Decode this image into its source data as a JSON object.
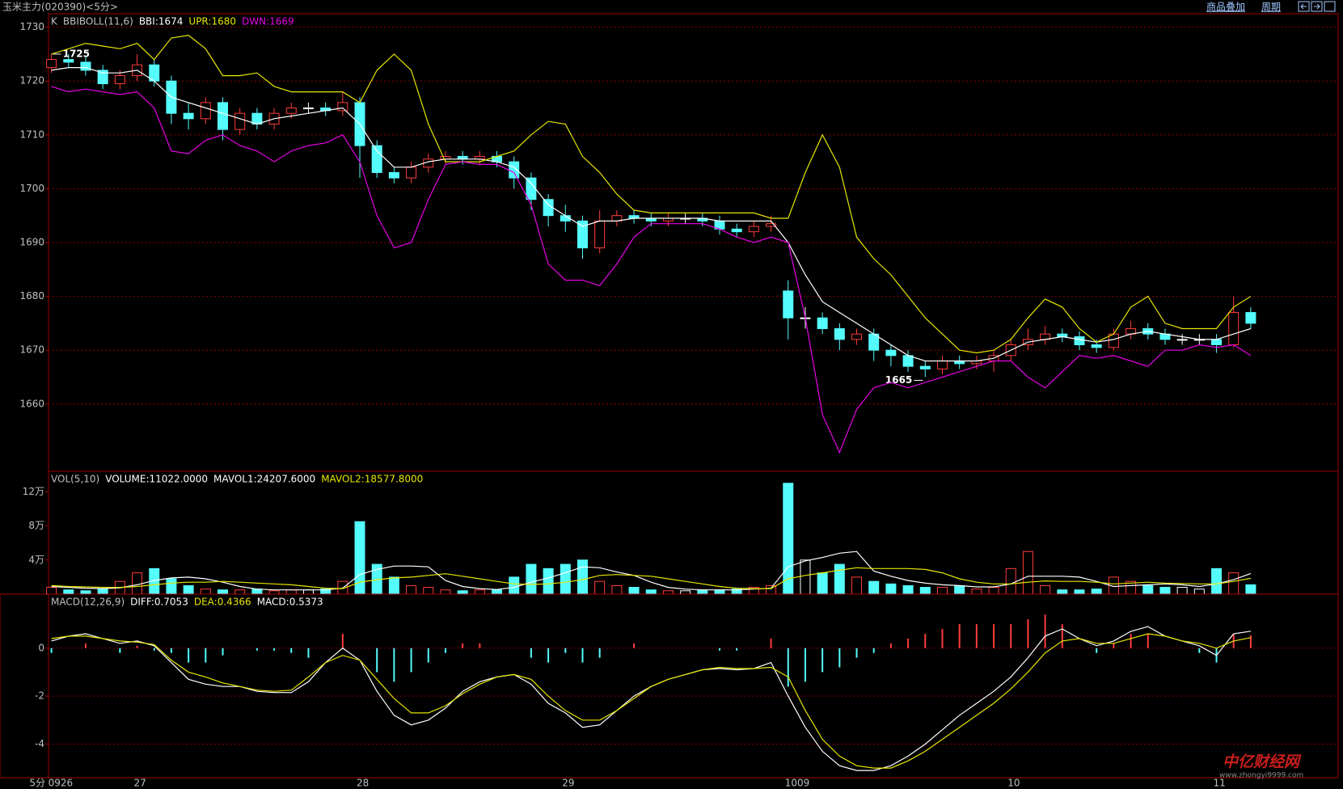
{
  "top_bar": {
    "title": "玉米主力(020390)<5分>",
    "links": [
      "商品叠加",
      "周期"
    ]
  },
  "watermark": {
    "title": "中亿财经网",
    "url": "www.zhongyi9999.com"
  },
  "chart_data": [
    {
      "type": "candlestick",
      "title": "K",
      "indicator": "BBIBOLL(11,6)",
      "up_color": "#ff3c3c",
      "down_color": "#54fcfc",
      "flat_color": "#ffffff",
      "open": [
        1722.5,
        1724,
        1723.5,
        1722,
        1719.5,
        1721,
        1723,
        1720,
        1714,
        1713,
        1716,
        1711,
        1714,
        1712,
        1714,
        1715,
        1715,
        1714.5,
        1716,
        1708,
        1703,
        1702,
        1704,
        1705.5,
        1706,
        1705.5,
        1706,
        1705,
        1702,
        1698,
        1695,
        1694,
        1689,
        1694,
        1695,
        1694.5,
        1694,
        1694.5,
        1694.5,
        1694,
        1692.5,
        1692,
        1693,
        1681,
        1676,
        1676,
        1674,
        1672,
        1673,
        1670,
        1669,
        1667,
        1666.5,
        1668,
        1667.5,
        1668,
        1669,
        1671,
        1672,
        1673,
        1672.5,
        1671,
        1670.5,
        1673,
        1674,
        1673,
        1672,
        1672,
        1672,
        1671,
        1677
      ],
      "high": [
        1725,
        1725,
        1724.5,
        1723,
        1722,
        1725,
        1724,
        1721,
        1716,
        1717,
        1717,
        1715,
        1715,
        1715,
        1716,
        1716,
        1716,
        1718,
        1717,
        1709,
        1704,
        1705,
        1706.5,
        1707,
        1707,
        1707,
        1707,
        1706,
        1703,
        1699,
        1697,
        1695,
        1696,
        1696,
        1696,
        1695.5,
        1695.5,
        1695.5,
        1695.5,
        1695,
        1693.5,
        1694,
        1695,
        1683,
        1678,
        1677,
        1675,
        1674,
        1674,
        1671,
        1670,
        1668,
        1669,
        1669,
        1669,
        1670,
        1672,
        1674,
        1674.5,
        1674,
        1673.5,
        1672,
        1674,
        1675.5,
        1675,
        1674,
        1673,
        1673,
        1673,
        1680,
        1678
      ],
      "low": [
        1721.5,
        1722.5,
        1721,
        1718.5,
        1718.5,
        1720,
        1719,
        1712,
        1711,
        1712,
        1709,
        1710,
        1711,
        1711,
        1713,
        1714,
        1713.5,
        1713.5,
        1702,
        1702,
        1701,
        1701,
        1703,
        1704.5,
        1704.5,
        1704.5,
        1704,
        1700,
        1696,
        1693,
        1692,
        1687,
        1688,
        1693,
        1693.5,
        1693,
        1693,
        1693.5,
        1693,
        1691.5,
        1691,
        1691,
        1692,
        1672,
        1674,
        1673,
        1670,
        1671,
        1668,
        1667,
        1666,
        1665,
        1665.5,
        1666.5,
        1666.5,
        1666,
        1668,
        1670,
        1671,
        1671.5,
        1670,
        1669.5,
        1670,
        1672,
        1672,
        1671,
        1671,
        1671,
        1669.5,
        1670.5,
        1674
      ],
      "close": [
        1724,
        1723.5,
        1722,
        1719.5,
        1721,
        1723,
        1720,
        1714,
        1713,
        1716,
        1711,
        1714,
        1712,
        1714,
        1715,
        1715,
        1714.5,
        1716,
        1708,
        1703,
        1702,
        1704,
        1705.5,
        1706,
        1705.5,
        1706,
        1705,
        1702,
        1698,
        1695,
        1694,
        1689,
        1694,
        1695,
        1694.5,
        1694,
        1694.5,
        1694.5,
        1694,
        1692.5,
        1692,
        1693,
        1693.5,
        1676,
        1676,
        1674,
        1672,
        1673,
        1670,
        1669,
        1667,
        1666.5,
        1668,
        1667.5,
        1668,
        1669,
        1671,
        1672,
        1673,
        1672.5,
        1671,
        1670.5,
        1673,
        1674,
        1673,
        1672,
        1672,
        1672,
        1671,
        1677,
        1675
      ],
      "series": [
        {
          "label": "BBI:1674",
          "color": "#ffffff",
          "values": [
            1722,
            1722.5,
            1722.5,
            1721.5,
            1721.5,
            1722,
            1720,
            1717,
            1716,
            1715,
            1714,
            1713,
            1712,
            1713,
            1713.5,
            1714,
            1714.5,
            1715,
            1712,
            1707,
            1704,
            1704,
            1705,
            1705.5,
            1705.5,
            1705.5,
            1705,
            1704,
            1701,
            1697,
            1695,
            1693,
            1694,
            1694,
            1694.5,
            1694.5,
            1694.5,
            1694.5,
            1694.5,
            1694,
            1694,
            1694,
            1694,
            1690,
            1684,
            1679,
            1677,
            1675,
            1673,
            1671,
            1669,
            1668,
            1668,
            1668,
            1668,
            1668.5,
            1670,
            1671.5,
            1672,
            1672.5,
            1672,
            1671.5,
            1672,
            1673,
            1673.5,
            1673,
            1672.5,
            1672,
            1672,
            1673,
            1674
          ]
        },
        {
          "label": "UPR:1680",
          "color": "#e6e600",
          "values": [
            1725,
            1726,
            1727,
            1726.5,
            1726,
            1727,
            1724,
            1728,
            1728.5,
            1726,
            1721,
            1721,
            1721.5,
            1719,
            1718,
            1718,
            1718,
            1718,
            1716,
            1722,
            1725,
            1722,
            1712,
            1705,
            1705,
            1705,
            1706,
            1707,
            1710,
            1712.5,
            1712,
            1706,
            1703,
            1699,
            1696,
            1695.5,
            1695.5,
            1695.5,
            1695.5,
            1695.5,
            1695.5,
            1695.5,
            1694.5,
            1694.5,
            1703,
            1710,
            1704,
            1691,
            1687,
            1684,
            1680,
            1676,
            1673,
            1670,
            1669.5,
            1670,
            1672,
            1676,
            1679.5,
            1678,
            1674,
            1671.5,
            1673,
            1678,
            1680,
            1675,
            1674,
            1674,
            1674,
            1678,
            1680
          ]
        },
        {
          "label": "DWN:1669",
          "color": "#e600e6",
          "values": [
            1719,
            1718,
            1718.5,
            1718,
            1717.5,
            1718,
            1715,
            1707,
            1706.5,
            1709,
            1710,
            1708,
            1707,
            1705,
            1707,
            1708,
            1708.5,
            1710,
            1705,
            1695,
            1689,
            1690,
            1698,
            1704.5,
            1705,
            1704.5,
            1704.5,
            1703,
            1697,
            1686,
            1683,
            1683,
            1682,
            1686,
            1691,
            1693.5,
            1693.5,
            1693.5,
            1693.5,
            1692.5,
            1691,
            1690,
            1691,
            1690,
            1676,
            1658,
            1651,
            1659,
            1663,
            1664,
            1663,
            1664,
            1665,
            1666,
            1667,
            1668,
            1668,
            1665,
            1663,
            1666,
            1669,
            1668.5,
            1669,
            1668,
            1667,
            1670,
            1670,
            1671,
            1670.5,
            1671,
            1669
          ]
        }
      ],
      "annotations": [
        1725,
        1665
      ],
      "ylim": [
        1647.5,
        1732.5
      ],
      "yticks": [
        1660,
        1670,
        1680,
        1690,
        1700,
        1710,
        1720,
        1730
      ],
      "grid": true
    },
    {
      "type": "bar",
      "title": "VOL(5,10)",
      "value_label": "VOLUME:11022.0000",
      "values": [
        8000,
        5000,
        4000,
        6000,
        15000,
        25000,
        30000,
        18000,
        10000,
        6000,
        5000,
        5000,
        6000,
        4000,
        5000,
        5000,
        6000,
        15000,
        85000,
        35000,
        20000,
        10000,
        8000,
        5000,
        4000,
        5000,
        5000,
        20000,
        35000,
        30000,
        35000,
        40000,
        15000,
        10000,
        8000,
        5000,
        4000,
        4000,
        5000,
        5000,
        6000,
        8000,
        10000,
        130000,
        40000,
        25000,
        35000,
        20000,
        15000,
        12000,
        10000,
        8000,
        8000,
        10000,
        6000,
        8000,
        30000,
        50000,
        10000,
        5000,
        5000,
        6000,
        20000,
        15000,
        10000,
        8000,
        8000,
        6000,
        30000,
        25000,
        11022
      ],
      "series": [
        {
          "label": "MAVOL1:24207.6000",
          "color": "#ffffff",
          "values": [
            9000,
            8000,
            7000,
            6500,
            7500,
            11000,
            16000,
            19000,
            20000,
            18000,
            14000,
            9000,
            6000,
            5000,
            5000,
            5000,
            5000,
            7000,
            23000,
            29000,
            33000,
            33000,
            32000,
            16000,
            9000,
            6500,
            5500,
            8000,
            14000,
            19000,
            25000,
            32000,
            31000,
            26000,
            22000,
            14000,
            8000,
            6000,
            5000,
            5000,
            5000,
            6000,
            7000,
            32000,
            39000,
            43000,
            48000,
            50000,
            27000,
            21000,
            16000,
            13000,
            11000,
            10000,
            8500,
            8500,
            12000,
            21000,
            21000,
            21000,
            20000,
            15000,
            9000,
            10000,
            11000,
            12000,
            11000,
            9000,
            12000,
            17000,
            24207.6
          ]
        },
        {
          "label": "MAVOL2:18577.8000",
          "color": "#e6e600",
          "values": [
            10000,
            9000,
            8500,
            8000,
            8000,
            9000,
            11000,
            13000,
            14000,
            14000,
            15000,
            14000,
            13000,
            12000,
            11000,
            9000,
            7000,
            6500,
            14000,
            17000,
            19000,
            20000,
            22000,
            24000,
            21000,
            18000,
            15000,
            12000,
            11500,
            12000,
            14000,
            17000,
            22000,
            23000,
            22000,
            21000,
            18000,
            15000,
            12000,
            9000,
            7000,
            6500,
            6500,
            18000,
            22000,
            25000,
            28000,
            31000,
            30000,
            30000,
            30000,
            29000,
            25000,
            18000,
            14000,
            12000,
            12000,
            14000,
            15500,
            15000,
            15000,
            14000,
            12000,
            13000,
            14000,
            13000,
            12500,
            12000,
            12000,
            15000,
            18577.8
          ]
        }
      ],
      "ylim": [
        0,
        144000
      ],
      "yticks": [
        {
          "value": 40000,
          "label": "4万"
        },
        {
          "value": 80000,
          "label": "8万"
        },
        {
          "value": 120000,
          "label": "12万"
        }
      ],
      "grid": false
    },
    {
      "type": "macd",
      "title": "MACD(12,26,9)",
      "xlabel": "5分",
      "categories": [
        "0926",
        null,
        null,
        null,
        null,
        "27",
        null,
        null,
        null,
        null,
        null,
        null,
        null,
        null,
        null,
        null,
        null,
        null,
        "28",
        null,
        null,
        null,
        null,
        null,
        null,
        null,
        null,
        null,
        null,
        null,
        "29",
        null,
        null,
        null,
        null,
        null,
        null,
        null,
        null,
        null,
        null,
        null,
        null,
        "1009",
        null,
        null,
        null,
        null,
        null,
        null,
        null,
        null,
        null,
        null,
        null,
        null,
        "10",
        null,
        null,
        null,
        null,
        null,
        null,
        null,
        null,
        null,
        null,
        null,
        "11",
        null,
        null
      ],
      "series": [
        {
          "label": "DIFF:0.7053",
          "color": "#ffffff",
          "values": [
            0.3,
            0.5,
            0.6,
            0.4,
            0.2,
            0.3,
            0.1,
            -0.6,
            -1.3,
            -1.5,
            -1.6,
            -1.6,
            -1.8,
            -1.85,
            -1.85,
            -1.4,
            -0.6,
            0,
            -0.5,
            -1.8,
            -2.8,
            -3.2,
            -3,
            -2.5,
            -1.8,
            -1.4,
            -1.2,
            -1.1,
            -1.5,
            -2.3,
            -2.7,
            -3.3,
            -3.2,
            -2.6,
            -2,
            -1.6,
            -1.3,
            -1.1,
            -0.9,
            -0.85,
            -0.9,
            -0.85,
            -0.6,
            -2,
            -3.3,
            -4.3,
            -4.9,
            -5.1,
            -5.1,
            -4.9,
            -4.5,
            -4,
            -3.4,
            -2.8,
            -2.3,
            -1.8,
            -1.2,
            -0.4,
            0.5,
            0.8,
            0.4,
            0.1,
            0.3,
            0.7,
            0.9,
            0.5,
            0.3,
            0.1,
            -0.3,
            0.6,
            0.7053
          ]
        },
        {
          "label": "DEA:0.4366",
          "color": "#e6e600",
          "values": [
            0.4,
            0.5,
            0.5,
            0.4,
            0.3,
            0.25,
            0.15,
            -0.5,
            -1,
            -1.2,
            -1.45,
            -1.6,
            -1.75,
            -1.8,
            -1.75,
            -1.2,
            -0.6,
            -0.3,
            -0.5,
            -1.3,
            -2.1,
            -2.7,
            -2.7,
            -2.4,
            -1.9,
            -1.5,
            -1.2,
            -1.1,
            -1.3,
            -2,
            -2.6,
            -3,
            -3,
            -2.6,
            -2.1,
            -1.6,
            -1.3,
            -1.1,
            -0.9,
            -0.8,
            -0.85,
            -0.85,
            -0.8,
            -1.2,
            -2.6,
            -3.8,
            -4.5,
            -4.9,
            -5,
            -5,
            -4.7,
            -4.3,
            -3.8,
            -3.3,
            -2.8,
            -2.3,
            -1.7,
            -1,
            -0.2,
            0.3,
            0.4,
            0.2,
            0.2,
            0.4,
            0.6,
            0.5,
            0.3,
            0.2,
            0,
            0.3,
            0.4366
          ]
        }
      ],
      "histogram": {
        "label": "MACD:0.5373",
        "up_color": "#ff3c3c",
        "down_color": "#54fcfc",
        "values": [
          -0.2,
          0,
          0.2,
          0,
          -0.2,
          0.1,
          -0.1,
          -0.2,
          -0.6,
          -0.6,
          -0.3,
          0,
          -0.1,
          -0.1,
          -0.2,
          -0.4,
          0,
          0.6,
          0,
          -1,
          -1.4,
          -1,
          -0.6,
          -0.2,
          0.2,
          0.2,
          0,
          0,
          -0.4,
          -0.6,
          -0.2,
          -0.6,
          -0.4,
          0,
          0.2,
          0,
          0,
          0,
          0,
          -0.1,
          -0.1,
          0,
          0.4,
          -1.6,
          -1.4,
          -1,
          -0.8,
          -0.4,
          -0.2,
          0.2,
          0.4,
          0.6,
          0.8,
          1,
          1,
          1,
          1,
          1.2,
          1.4,
          1,
          0,
          -0.2,
          0.2,
          0.6,
          0.6,
          0,
          0,
          -0.2,
          -0.6,
          0.6,
          0.5373
        ]
      },
      "ylim": [
        -5.4,
        2.25
      ],
      "yticks": [
        -4,
        -2,
        0
      ],
      "grid": true
    }
  ]
}
